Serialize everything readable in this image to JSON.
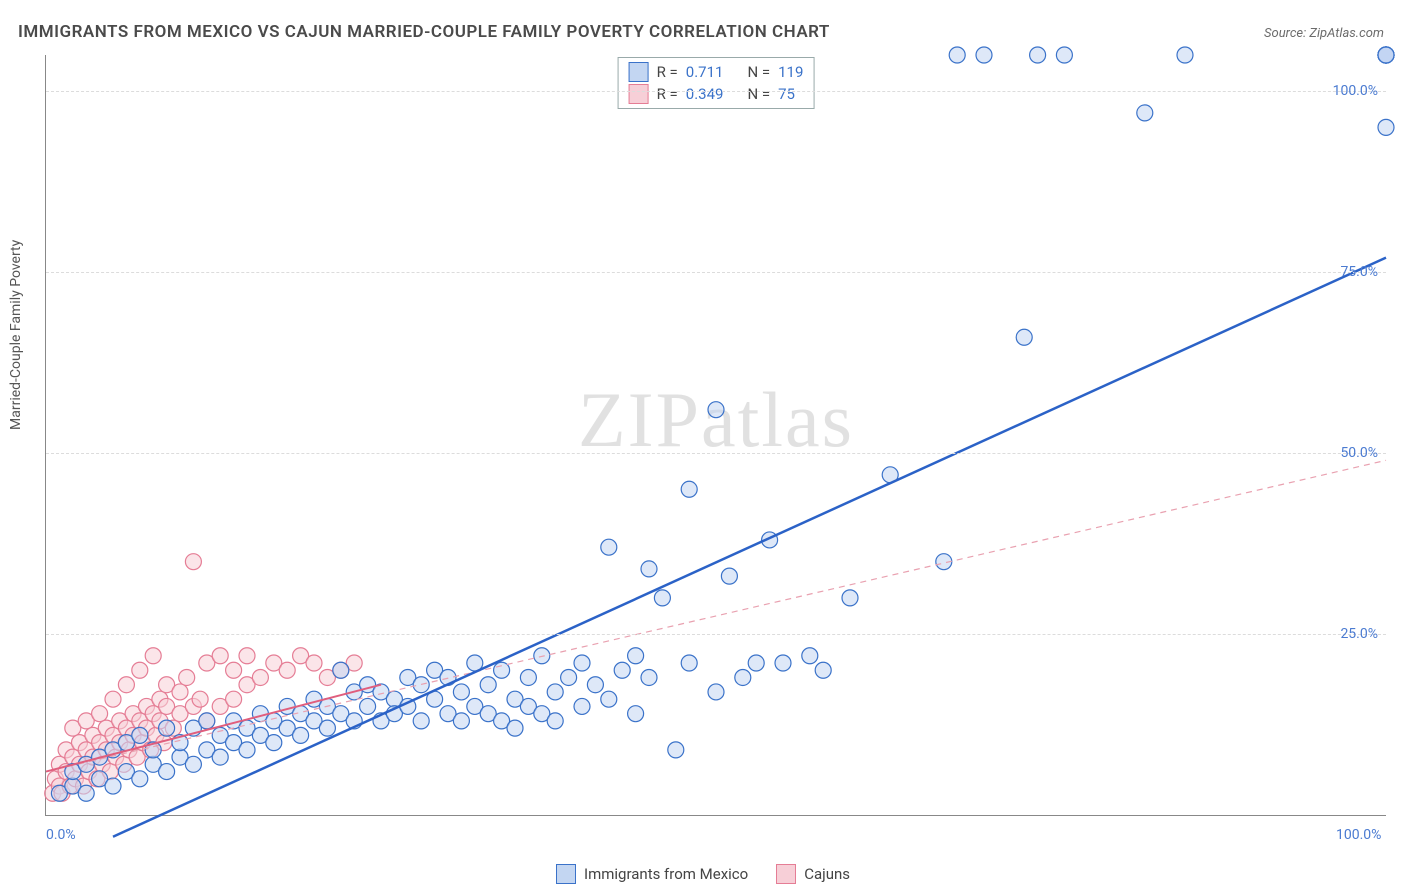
{
  "title": "IMMIGRANTS FROM MEXICO VS CAJUN MARRIED-COUPLE FAMILY POVERTY CORRELATION CHART",
  "source": "Source: ZipAtlas.com",
  "watermark_a": "ZIP",
  "watermark_b": "atlas",
  "chart": {
    "type": "scatter",
    "xlabel": "",
    "ylabel": "Married-Couple Family Poverty",
    "xlim": [
      0,
      100
    ],
    "ylim": [
      0,
      105
    ],
    "x_ticks": [
      {
        "v": 0,
        "label": "0.0%"
      },
      {
        "v": 100,
        "label": "100.0%"
      }
    ],
    "y_ticks": [
      {
        "v": 25,
        "label": "25.0%"
      },
      {
        "v": 50,
        "label": "50.0%"
      },
      {
        "v": 75,
        "label": "75.0%"
      },
      {
        "v": 100,
        "label": "100.0%"
      }
    ],
    "grid_color": "#dcdcdc",
    "axis_color": "#888888",
    "background_color": "#ffffff",
    "marker_radius": 8,
    "marker_opacity": 0.55,
    "series": [
      {
        "name": "Immigrants from Mexico",
        "color_fill": "#c3d6f2",
        "color_stroke": "#3a72c9",
        "R": 0.711,
        "N": 119,
        "trend": {
          "x1": 5,
          "y1": -3,
          "x2": 100,
          "y2": 77,
          "stroke": "#2b62c7",
          "width": 2.5,
          "dash": "none"
        },
        "points": [
          [
            1,
            3
          ],
          [
            2,
            4
          ],
          [
            2,
            6
          ],
          [
            3,
            3
          ],
          [
            3,
            7
          ],
          [
            4,
            5
          ],
          [
            4,
            8
          ],
          [
            5,
            4
          ],
          [
            5,
            9
          ],
          [
            6,
            6
          ],
          [
            6,
            10
          ],
          [
            7,
            5
          ],
          [
            7,
            11
          ],
          [
            8,
            7
          ],
          [
            8,
            9
          ],
          [
            9,
            6
          ],
          [
            9,
            12
          ],
          [
            10,
            8
          ],
          [
            10,
            10
          ],
          [
            11,
            7
          ],
          [
            11,
            12
          ],
          [
            12,
            9
          ],
          [
            12,
            13
          ],
          [
            13,
            8
          ],
          [
            13,
            11
          ],
          [
            14,
            10
          ],
          [
            14,
            13
          ],
          [
            15,
            9
          ],
          [
            15,
            12
          ],
          [
            16,
            11
          ],
          [
            16,
            14
          ],
          [
            17,
            10
          ],
          [
            17,
            13
          ],
          [
            18,
            12
          ],
          [
            18,
            15
          ],
          [
            19,
            11
          ],
          [
            19,
            14
          ],
          [
            20,
            13
          ],
          [
            20,
            16
          ],
          [
            21,
            12
          ],
          [
            21,
            15
          ],
          [
            22,
            14
          ],
          [
            22,
            20
          ],
          [
            23,
            13
          ],
          [
            23,
            17
          ],
          [
            24,
            15
          ],
          [
            24,
            18
          ],
          [
            25,
            13
          ],
          [
            25,
            17
          ],
          [
            26,
            16
          ],
          [
            26,
            14
          ],
          [
            27,
            19
          ],
          [
            27,
            15
          ],
          [
            28,
            18
          ],
          [
            28,
            13
          ],
          [
            29,
            20
          ],
          [
            29,
            16
          ],
          [
            30,
            14
          ],
          [
            30,
            19
          ],
          [
            31,
            17
          ],
          [
            31,
            13
          ],
          [
            32,
            15
          ],
          [
            32,
            21
          ],
          [
            33,
            14
          ],
          [
            33,
            18
          ],
          [
            34,
            13
          ],
          [
            34,
            20
          ],
          [
            35,
            16
          ],
          [
            35,
            12
          ],
          [
            36,
            19
          ],
          [
            36,
            15
          ],
          [
            37,
            14
          ],
          [
            37,
            22
          ],
          [
            38,
            17
          ],
          [
            38,
            13
          ],
          [
            39,
            19
          ],
          [
            40,
            15
          ],
          [
            40,
            21
          ],
          [
            41,
            18
          ],
          [
            42,
            16
          ],
          [
            42,
            37
          ],
          [
            43,
            20
          ],
          [
            44,
            22
          ],
          [
            44,
            14
          ],
          [
            45,
            19
          ],
          [
            45,
            34
          ],
          [
            46,
            30
          ],
          [
            47,
            9
          ],
          [
            48,
            45
          ],
          [
            48,
            21
          ],
          [
            50,
            17
          ],
          [
            50,
            56
          ],
          [
            51,
            33
          ],
          [
            52,
            19
          ],
          [
            53,
            21
          ],
          [
            54,
            38
          ],
          [
            55,
            21
          ],
          [
            57,
            22
          ],
          [
            58,
            20
          ],
          [
            60,
            30
          ],
          [
            63,
            47
          ],
          [
            67,
            35
          ],
          [
            68,
            105
          ],
          [
            70,
            105
          ],
          [
            73,
            66
          ],
          [
            74,
            105
          ],
          [
            76,
            105
          ],
          [
            82,
            97
          ],
          [
            85,
            105
          ],
          [
            100,
            95
          ],
          [
            100,
            105
          ],
          [
            100,
            105
          ],
          [
            100,
            105
          ],
          [
            100,
            105
          ],
          [
            100,
            105
          ],
          [
            100,
            105
          ],
          [
            100,
            105
          ],
          [
            100,
            105
          ],
          [
            100,
            105
          ]
        ]
      },
      {
        "name": "Cajuns",
        "color_fill": "#f7cfd7",
        "color_stroke": "#e57d95",
        "R": 0.349,
        "N": 75,
        "trend": {
          "x1": 0,
          "y1": 6,
          "x2": 100,
          "y2": 49,
          "stroke": "#e9a1b0",
          "width": 1.2,
          "dash": "6 5"
        },
        "trend_solid": {
          "x1": 0,
          "y1": 6,
          "x2": 25,
          "y2": 18,
          "stroke": "#e05e7d",
          "width": 2,
          "dash": "none"
        },
        "points": [
          [
            0.5,
            3
          ],
          [
            0.7,
            5
          ],
          [
            1,
            4
          ],
          [
            1,
            7
          ],
          [
            1.2,
            3
          ],
          [
            1.5,
            6
          ],
          [
            1.5,
            9
          ],
          [
            1.8,
            4
          ],
          [
            2,
            8
          ],
          [
            2,
            12
          ],
          [
            2.2,
            5
          ],
          [
            2.5,
            10
          ],
          [
            2.5,
            7
          ],
          [
            2.8,
            4
          ],
          [
            3,
            9
          ],
          [
            3,
            13
          ],
          [
            3.2,
            6
          ],
          [
            3.5,
            11
          ],
          [
            3.5,
            8
          ],
          [
            3.8,
            5
          ],
          [
            4,
            10
          ],
          [
            4,
            14
          ],
          [
            4.2,
            7
          ],
          [
            4.5,
            12
          ],
          [
            4.5,
            9
          ],
          [
            4.8,
            6
          ],
          [
            5,
            11
          ],
          [
            5,
            16
          ],
          [
            5.2,
            8
          ],
          [
            5.5,
            13
          ],
          [
            5.5,
            10
          ],
          [
            5.8,
            7
          ],
          [
            6,
            12
          ],
          [
            6,
            18
          ],
          [
            6.2,
            9
          ],
          [
            6.5,
            14
          ],
          [
            6.5,
            11
          ],
          [
            6.8,
            8
          ],
          [
            7,
            13
          ],
          [
            7,
            20
          ],
          [
            7.2,
            10
          ],
          [
            7.5,
            15
          ],
          [
            7.5,
            12
          ],
          [
            7.8,
            9
          ],
          [
            8,
            14
          ],
          [
            8,
            22
          ],
          [
            8.2,
            11
          ],
          [
            8.5,
            16
          ],
          [
            8.5,
            13
          ],
          [
            8.8,
            10
          ],
          [
            9,
            15
          ],
          [
            9,
            18
          ],
          [
            9.5,
            12
          ],
          [
            10,
            17
          ],
          [
            10,
            14
          ],
          [
            10.5,
            19
          ],
          [
            11,
            15
          ],
          [
            11,
            35
          ],
          [
            11.5,
            16
          ],
          [
            12,
            13
          ],
          [
            12,
            21
          ],
          [
            13,
            22
          ],
          [
            13,
            15
          ],
          [
            14,
            20
          ],
          [
            14,
            16
          ],
          [
            15,
            18
          ],
          [
            15,
            22
          ],
          [
            16,
            19
          ],
          [
            17,
            21
          ],
          [
            18,
            20
          ],
          [
            19,
            22
          ],
          [
            20,
            21
          ],
          [
            21,
            19
          ],
          [
            22,
            20
          ],
          [
            23,
            21
          ]
        ]
      }
    ],
    "legend_top": {
      "rows": [
        {
          "swatch": "blue",
          "r_label": "R =",
          "r_val": "0.711",
          "n_label": "N =",
          "n_val": "119"
        },
        {
          "swatch": "pink",
          "r_label": "R =",
          "r_val": "0.349",
          "n_label": "N =",
          "n_val": "75"
        }
      ]
    },
    "legend_bottom": [
      {
        "swatch": "blue",
        "label": "Immigrants from Mexico"
      },
      {
        "swatch": "pink",
        "label": "Cajuns"
      }
    ]
  }
}
